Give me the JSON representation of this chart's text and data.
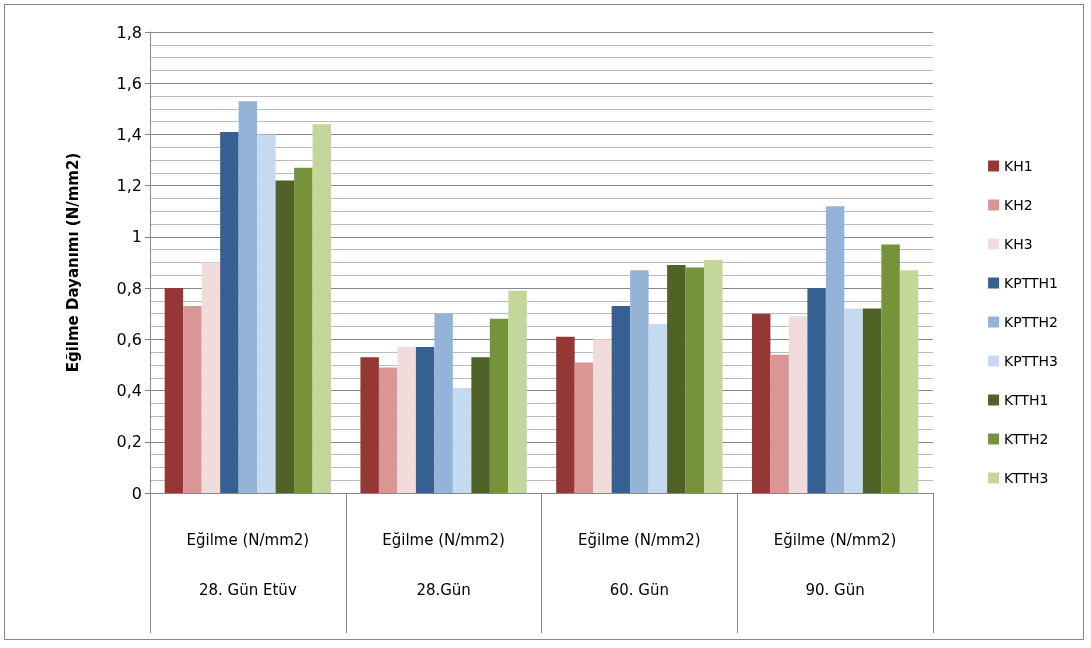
{
  "chart_data": {
    "type": "bar",
    "ylabel": "Eğilme Dayanımı (N/mm2)",
    "categories": [
      "Eğilme (N/mm2)\n28. Gün Etüv",
      "Eğilme (N/mm2)\n28.Gün",
      "Eğilme (N/mm2)\n60. Gün",
      "Eğilme (N/mm2)\n90. Gün"
    ],
    "series": [
      {
        "name": "KH1",
        "color": "#953735",
        "values": [
          0.8,
          0.53,
          0.61,
          0.7
        ]
      },
      {
        "name": "KH2",
        "color": "#da9694",
        "values": [
          0.73,
          0.49,
          0.51,
          0.54
        ]
      },
      {
        "name": "KH3",
        "color": "#f2dcdb",
        "values": [
          0.9,
          0.57,
          0.6,
          0.69
        ]
      },
      {
        "name": "KPTTH1",
        "color": "#366092",
        "values": [
          1.41,
          0.57,
          0.73,
          0.8
        ]
      },
      {
        "name": "KPTTH2",
        "color": "#95b3d7",
        "values": [
          1.53,
          0.7,
          0.87,
          1.12
        ]
      },
      {
        "name": "KPTTH3",
        "color": "#c5d9f1",
        "values": [
          1.4,
          0.41,
          0.66,
          0.72
        ]
      },
      {
        "name": "KTTH1",
        "color": "#4f6228",
        "values": [
          1.22,
          0.53,
          0.89,
          0.72
        ]
      },
      {
        "name": "KTTH2",
        "color": "#76933c",
        "values": [
          1.27,
          0.68,
          0.88,
          0.97
        ]
      },
      {
        "name": "KTTH3",
        "color": "#c4d79b",
        "values": [
          1.44,
          0.79,
          0.91,
          0.87
        ]
      }
    ],
    "ylim": [
      0,
      1.8
    ],
    "yticks": [
      0,
      {
        "value": 0.2,
        "label": "0,2"
      },
      {
        "value": 0.4,
        "label": "0,4"
      },
      {
        "value": 0.6,
        "label": "0,6"
      },
      {
        "value": 0.8,
        "label": "0,8"
      },
      1,
      {
        "value": 1.2,
        "label": "1,2"
      },
      {
        "value": 1.4,
        "label": "1,4"
      },
      {
        "value": 1.6,
        "label": "1,6"
      },
      {
        "value": 1.8,
        "label": "1,8"
      }
    ],
    "grid": true,
    "legend": "right"
  }
}
